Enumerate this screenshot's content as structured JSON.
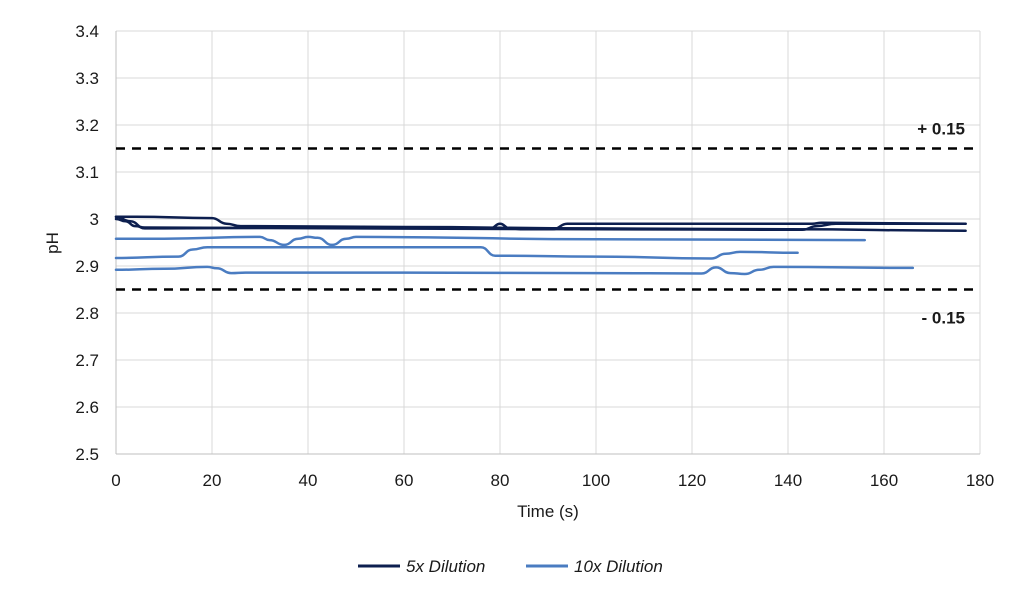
{
  "chart_data": {
    "type": "line",
    "title": "",
    "xlabel": "Time (s)",
    "ylabel": "pH",
    "xlim": [
      0,
      180
    ],
    "ylim": [
      2.5,
      3.4
    ],
    "x_ticks": [
      0,
      20,
      40,
      60,
      80,
      100,
      120,
      140,
      160,
      180
    ],
    "y_ticks": [
      2.5,
      2.6,
      2.7,
      2.8,
      2.9,
      3.0,
      3.1,
      3.2,
      3.3,
      3.4
    ],
    "y_tick_labels": [
      "2.5",
      "2.6",
      "2.7",
      "2.8",
      "2.9",
      "3",
      "3.1",
      "3.2",
      "3.3",
      "3.4"
    ],
    "x_tick_labels": [
      "0",
      "20",
      "40",
      "60",
      "80",
      "100",
      "120",
      "140",
      "160",
      "180"
    ],
    "grid": true,
    "legend_position": "bottom",
    "reference_lines": [
      {
        "y": 3.15,
        "label": "+ 0.15",
        "style": "dashed"
      },
      {
        "y": 2.85,
        "label": "- 0.15",
        "style": "dashed"
      }
    ],
    "series": [
      {
        "name": "5x Dilution",
        "color": "#0d1f4f",
        "runs": [
          {
            "x": [
              0,
              4,
              20,
              23,
              26,
              60,
              100,
              140,
              177
            ],
            "y": [
              3.005,
              3.005,
              3.002,
              2.99,
              2.985,
              2.983,
              2.98,
              2.978,
              2.975
            ]
          },
          {
            "x": [
              0,
              3,
              6,
              10,
              40,
              78,
              80,
              82,
              85,
              91,
              94,
              120,
              145,
              147,
              177
            ],
            "y": [
              3.005,
              2.995,
              2.98,
              2.98,
              2.982,
              2.98,
              2.99,
              2.98,
              2.978,
              2.978,
              2.99,
              2.99,
              2.99,
              2.992,
              2.99
            ]
          },
          {
            "x": [
              0,
              2,
              4,
              6,
              50,
              100,
              143,
              146,
              150,
              177
            ],
            "y": [
              3.0,
              2.995,
              2.985,
              2.982,
              2.98,
              2.978,
              2.977,
              2.985,
              2.99,
              2.99
            ]
          }
        ]
      },
      {
        "name": "10x Dilution",
        "color": "#4a7cc1",
        "runs": [
          {
            "x": [
              0,
              10,
              30,
              32,
              35,
              38,
              40,
              42,
              45,
              48,
              50,
              100,
              156
            ],
            "y": [
              2.958,
              2.958,
              2.962,
              2.955,
              2.945,
              2.958,
              2.962,
              2.96,
              2.945,
              2.958,
              2.962,
              2.957,
              2.955
            ]
          },
          {
            "x": [
              0,
              13,
              16,
              19,
              40,
              76,
              79,
              100,
              124,
              127,
              130,
              142
            ],
            "y": [
              2.917,
              2.92,
              2.935,
              2.94,
              2.94,
              2.94,
              2.922,
              2.92,
              2.916,
              2.926,
              2.93,
              2.928
            ]
          },
          {
            "x": [
              0,
              10,
              19,
              21,
              24,
              27,
              60,
              100,
              122,
              125,
              128,
              131,
              134,
              137,
              166
            ],
            "y": [
              2.892,
              2.894,
              2.898,
              2.895,
              2.885,
              2.886,
              2.886,
              2.885,
              2.884,
              2.897,
              2.885,
              2.883,
              2.892,
              2.898,
              2.896
            ]
          }
        ]
      }
    ]
  }
}
